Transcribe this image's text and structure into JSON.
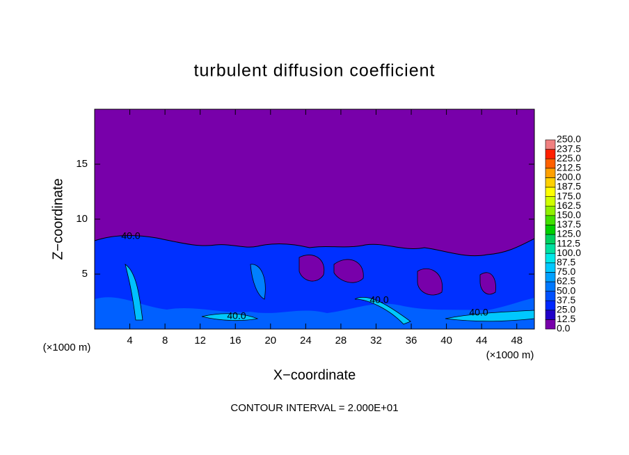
{
  "chart_data": {
    "type": "contour",
    "title": "turbulent diffusion coefficient",
    "xlabel": "X−coordinate",
    "ylabel": "Z−coordinate",
    "x_unit": "(×1000 m)",
    "x_unit_right": "(×1000 m)",
    "footnote": "CONTOUR INTERVAL = 2.000E+01",
    "xlim": [
      0,
      50
    ],
    "xticks": [
      4,
      8,
      12,
      16,
      20,
      24,
      28,
      32,
      36,
      40,
      44,
      48
    ],
    "ylim": [
      0,
      20
    ],
    "yticks": [
      5,
      10,
      15
    ],
    "contour_labels": [
      "40.0",
      "40.0",
      "40.0",
      "40.0"
    ],
    "colorbar": {
      "levels": [
        {
          "value": 0,
          "label": "0.0"
        },
        {
          "value": 12.5,
          "label": "12.5"
        },
        {
          "value": 25,
          "label": "25.0"
        },
        {
          "value": 37.5,
          "label": "37.5"
        },
        {
          "value": 50,
          "label": "50.0"
        },
        {
          "value": 62.5,
          "label": "62.5"
        },
        {
          "value": 75,
          "label": "75.0"
        },
        {
          "value": 87.5,
          "label": "87.5"
        },
        {
          "value": 100,
          "label": "100.0"
        },
        {
          "value": 112.5,
          "label": "112.5"
        },
        {
          "value": 125,
          "label": "125.0"
        },
        {
          "value": 137.5,
          "label": "137.5"
        },
        {
          "value": 150,
          "label": "150.0"
        },
        {
          "value": 162.5,
          "label": "162.5"
        },
        {
          "value": 175,
          "label": "175.0"
        },
        {
          "value": 187.5,
          "label": "187.5"
        },
        {
          "value": 200,
          "label": "200.0"
        },
        {
          "value": 212.5,
          "label": "212.5"
        },
        {
          "value": 225,
          "label": "225.0"
        },
        {
          "value": 237.5,
          "label": "237.5"
        },
        {
          "value": 250,
          "label": "250.0"
        }
      ],
      "colors": [
        "#7800aa",
        "#2000c8",
        "#0028ff",
        "#0050ff",
        "#0078ff",
        "#00a0ff",
        "#00c8ff",
        "#00e8e8",
        "#00e0a0",
        "#00d060",
        "#00d000",
        "#40e000",
        "#90f000",
        "#d0ff00",
        "#ffff00",
        "#ffd000",
        "#ffa000",
        "#ff6000",
        "#ff2000",
        "#f08080"
      ]
    }
  }
}
